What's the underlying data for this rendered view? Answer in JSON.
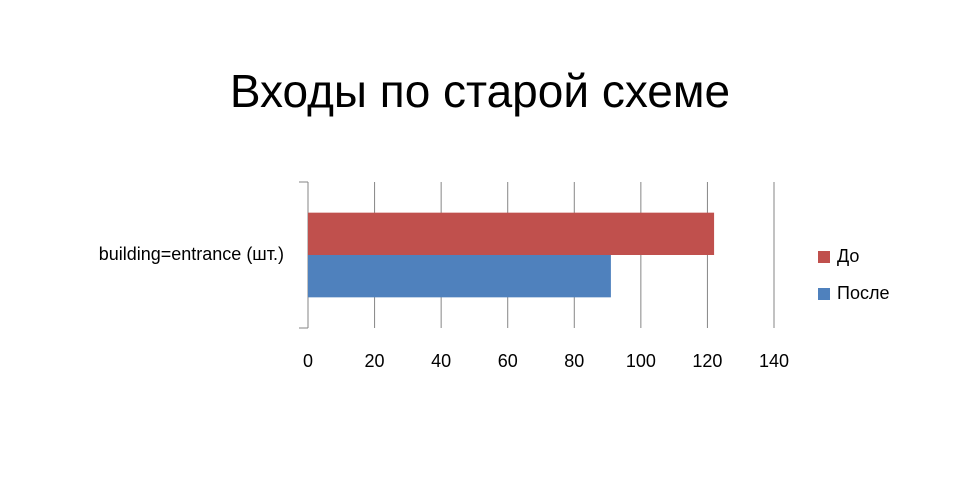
{
  "chart_data": {
    "type": "bar",
    "orientation": "horizontal",
    "title": "Входы по старой схеме",
    "categories": [
      "building=entrance (шт.)"
    ],
    "series": [
      {
        "name": "До",
        "color": "#c0504d",
        "values": [
          122
        ]
      },
      {
        "name": "После",
        "color": "#4f81bd",
        "values": [
          91
        ]
      }
    ],
    "xlim": [
      0,
      140
    ],
    "xticks": [
      0,
      20,
      40,
      60,
      80,
      100,
      120,
      140
    ],
    "grid": true,
    "legend": "right"
  }
}
